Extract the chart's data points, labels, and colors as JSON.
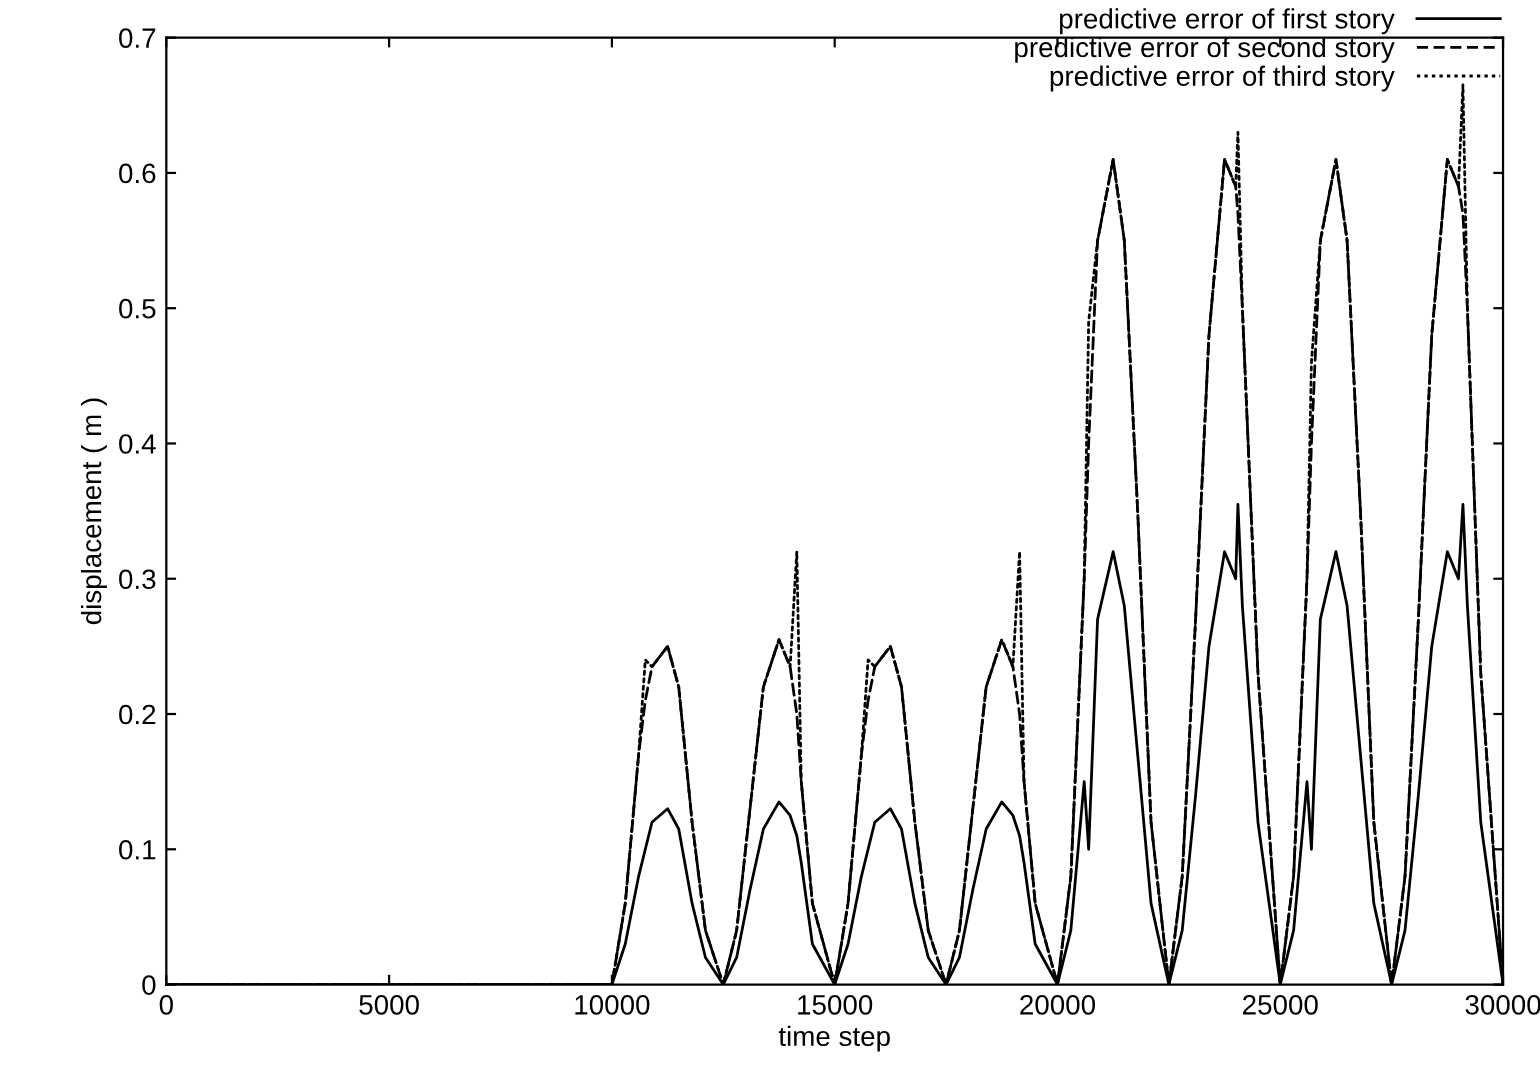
{
  "chart_data": {
    "type": "line",
    "xlabel": "time step",
    "ylabel": "displacement ( m )",
    "x": [
      0,
      9800,
      10000,
      10300,
      10600,
      10750,
      10900,
      11250,
      11500,
      11800,
      12100,
      12500,
      12800,
      13100,
      13400,
      13750,
      14000,
      14150,
      14250,
      14500,
      15000,
      15300,
      15600,
      15750,
      15900,
      16250,
      16500,
      16800,
      17100,
      17500,
      17800,
      18100,
      18400,
      18750,
      19000,
      19150,
      19250,
      19500,
      20000,
      20300,
      20600,
      20700,
      20900,
      21250,
      21500,
      21800,
      22100,
      22500,
      22800,
      23100,
      23400,
      23750,
      24000,
      24050,
      24150,
      24500,
      25000,
      25300,
      25600,
      25700,
      25900,
      26250,
      26500,
      26800,
      27100,
      27500,
      27800,
      28100,
      28400,
      28750,
      29000,
      29100,
      29200,
      29500,
      30000
    ],
    "series": [
      {
        "name": "predictive error of first story",
        "color": "#000000",
        "line_style": "solid",
        "values": [
          0,
          0,
          0,
          0.03,
          0.08,
          0.1,
          0.12,
          0.13,
          0.115,
          0.06,
          0.02,
          0,
          0.02,
          0.07,
          0.115,
          0.135,
          0.125,
          0.11,
          0.09,
          0.03,
          0,
          0.03,
          0.08,
          0.1,
          0.12,
          0.13,
          0.115,
          0.06,
          0.02,
          0,
          0.02,
          0.07,
          0.115,
          0.135,
          0.125,
          0.11,
          0.09,
          0.03,
          0,
          0.04,
          0.15,
          0.1,
          0.27,
          0.32,
          0.28,
          0.17,
          0.06,
          0,
          0.04,
          0.14,
          0.25,
          0.32,
          0.3,
          0.355,
          0.28,
          0.12,
          0,
          0.04,
          0.15,
          0.1,
          0.27,
          0.32,
          0.28,
          0.17,
          0.06,
          0,
          0.04,
          0.14,
          0.25,
          0.32,
          0.3,
          0.355,
          0.28,
          0.12,
          0
        ]
      },
      {
        "name": "predictive error of second story",
        "color": "#000000",
        "line_style": "dashed",
        "values": [
          0,
          0,
          0,
          0.06,
          0.17,
          0.21,
          0.235,
          0.25,
          0.22,
          0.12,
          0.04,
          0,
          0.04,
          0.13,
          0.22,
          0.255,
          0.235,
          0.2,
          0.15,
          0.06,
          0,
          0.06,
          0.17,
          0.21,
          0.235,
          0.25,
          0.22,
          0.12,
          0.04,
          0,
          0.04,
          0.13,
          0.22,
          0.255,
          0.235,
          0.2,
          0.15,
          0.06,
          0,
          0.08,
          0.3,
          0.4,
          0.55,
          0.61,
          0.55,
          0.35,
          0.12,
          0,
          0.08,
          0.27,
          0.48,
          0.61,
          0.59,
          0.57,
          0.5,
          0.23,
          0,
          0.08,
          0.3,
          0.4,
          0.55,
          0.61,
          0.55,
          0.35,
          0.12,
          0,
          0.08,
          0.27,
          0.48,
          0.61,
          0.59,
          0.57,
          0.5,
          0.23,
          0
        ]
      },
      {
        "name": "predictive error of third story",
        "color": "#000000",
        "line_style": "dotted",
        "values": [
          0,
          0,
          0,
          0.06,
          0.17,
          0.24,
          0.235,
          0.25,
          0.22,
          0.12,
          0.04,
          0,
          0.04,
          0.13,
          0.22,
          0.255,
          0.235,
          0.32,
          0.15,
          0.06,
          0,
          0.06,
          0.17,
          0.24,
          0.235,
          0.25,
          0.22,
          0.12,
          0.04,
          0,
          0.04,
          0.13,
          0.22,
          0.255,
          0.235,
          0.32,
          0.15,
          0.06,
          0,
          0.08,
          0.3,
          0.49,
          0.55,
          0.61,
          0.55,
          0.35,
          0.12,
          0,
          0.08,
          0.27,
          0.48,
          0.61,
          0.59,
          0.63,
          0.5,
          0.23,
          0,
          0.08,
          0.3,
          0.46,
          0.55,
          0.61,
          0.55,
          0.35,
          0.12,
          0,
          0.08,
          0.27,
          0.48,
          0.61,
          0.59,
          0.665,
          0.5,
          0.23,
          0
        ]
      }
    ],
    "xlim": [
      0,
      30000
    ],
    "xticks": [
      0,
      5000,
      10000,
      15000,
      20000,
      25000,
      30000
    ],
    "ylim": [
      0,
      0.7
    ],
    "yticks": [
      0,
      0.1,
      0.2,
      0.3,
      0.4,
      0.5,
      0.6,
      0.7
    ],
    "legend": "top right",
    "grid": false
  }
}
